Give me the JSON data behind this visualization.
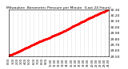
{
  "title": "Milwaukee  Barometric Pressure per Minute  (Last 24 Hours)",
  "line_color": "#ff0000",
  "bg_color": "#ffffff",
  "plot_bg_color": "#ffffff",
  "grid_color": "#bbbbbb",
  "y_min": 29.5,
  "y_max": 30.3,
  "num_points": 1440,
  "y_start": 29.52,
  "y_end": 30.28,
  "ylabel_fontsize": 3.2,
  "title_fontsize": 3.2,
  "xlabel_fontsize": 2.5,
  "marker_size": 0.5,
  "linewidth": 0.0,
  "x_tick_pos": [
    0,
    60,
    120,
    180,
    240,
    300,
    360,
    420,
    480,
    540,
    600,
    660,
    720,
    780,
    840,
    900,
    960,
    1020,
    1080,
    1140,
    1200,
    1260,
    1320,
    1380,
    1439
  ],
  "x_tick_labels": [
    "0:00",
    "1:00",
    "2:00",
    "3:00",
    "4:00",
    "5:00",
    "6:00",
    "7:00",
    "8:00",
    "9:00",
    "10:00",
    "11:00",
    "12:00",
    "13:00",
    "14:00",
    "15:00",
    "16:00",
    "17:00",
    "18:00",
    "19:00",
    "20:00",
    "21:00",
    "22:00",
    "23:00",
    "24:00"
  ],
  "y_ticks": [
    29.5,
    29.6,
    29.7,
    29.8,
    29.9,
    30.0,
    30.1,
    30.2,
    30.3
  ],
  "y_tick_labels": [
    "29.50",
    "29.60",
    "29.70",
    "29.80",
    "29.90",
    "30.00",
    "30.10",
    "30.20",
    "30.30"
  ]
}
